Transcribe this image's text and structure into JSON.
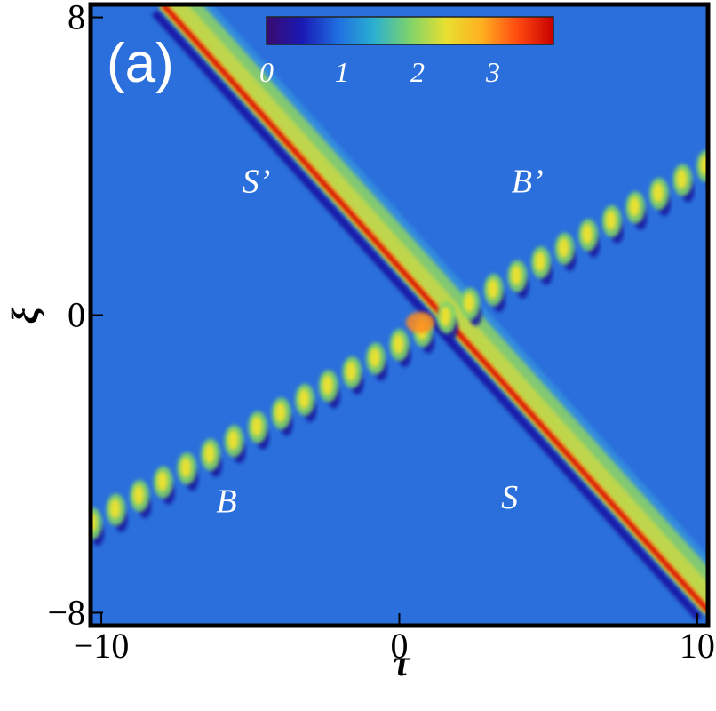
{
  "chart_data": {
    "type": "heatmap",
    "panel_label": "(a)",
    "xlabel": "τ",
    "ylabel": "ξ",
    "xlim": [
      -10.3,
      10.3
    ],
    "ylim": [
      -8.3,
      8.3
    ],
    "x_ticks": [
      {
        "value": -10,
        "label": "−10"
      },
      {
        "value": 0,
        "label": "0"
      },
      {
        "value": 10,
        "label": "10"
      }
    ],
    "y_ticks": [
      {
        "value": 8,
        "label": "8"
      },
      {
        "value": 0,
        "label": "0"
      },
      {
        "value": -8,
        "label": "−8"
      }
    ],
    "colorbar": {
      "range": [
        0,
        3.8
      ],
      "colormap": [
        "#3a0a6e",
        "#1a1ab5",
        "#1f6fe0",
        "#2ab0d0",
        "#7fd36a",
        "#e8e030",
        "#ffb020",
        "#ff4a10",
        "#c80000"
      ],
      "ticks": [
        {
          "value": 0,
          "label": "0"
        },
        {
          "value": 1,
          "label": "1"
        },
        {
          "value": 2,
          "label": "2"
        },
        {
          "value": 3,
          "label": "3"
        }
      ]
    },
    "background_level": 1.0,
    "series": [
      {
        "type": "soliton-line",
        "peak": 3.6,
        "points": [
          [
            -8.0,
            8.3
          ],
          [
            10.3,
            -8.0
          ]
        ]
      },
      {
        "type": "breather-line",
        "peak": 2.4,
        "points": [
          [
            -10.3,
            -5.6
          ],
          [
            10.3,
            4.0
          ]
        ]
      }
    ],
    "annotations": [
      {
        "text": "S’",
        "x": -4.8,
        "y": 3.3
      },
      {
        "text": "B’",
        "x": 4.3,
        "y": 3.3
      },
      {
        "text": "B",
        "x": -5.8,
        "y": -5.3
      },
      {
        "text": "S",
        "x": 3.7,
        "y": -5.2
      }
    ]
  }
}
